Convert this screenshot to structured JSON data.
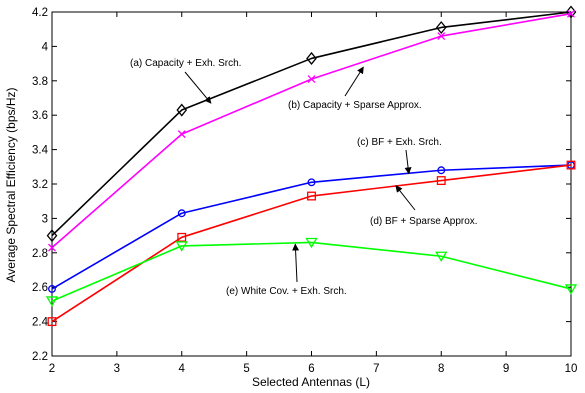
{
  "chart_data": {
    "type": "line",
    "xlabel": "Selected Antennas (L)",
    "ylabel": "Average Spectral Efficiency (bps/Hz)",
    "xlim": [
      2,
      10
    ],
    "ylim": [
      2.2,
      4.2
    ],
    "xticks": [
      2,
      3,
      4,
      5,
      6,
      7,
      8,
      9,
      10
    ],
    "yticks": [
      2.2,
      2.4,
      2.6,
      2.8,
      3.0,
      3.2,
      3.4,
      3.6,
      3.8,
      4.0,
      4.2
    ],
    "ytick_labels": [
      "2.2",
      "2.4",
      "2.6",
      "2.8",
      "3",
      "3.2",
      "3.4",
      "3.6",
      "3.8",
      "4",
      "4.2"
    ],
    "grid": false,
    "legend": "none",
    "x": [
      2,
      4,
      6,
      8,
      10
    ],
    "series": [
      {
        "name": "(a) Capacity + Exh. Srch.",
        "color": "#000000",
        "marker": "diamond",
        "values": [
          2.9,
          3.63,
          3.93,
          4.11,
          4.2
        ]
      },
      {
        "name": "(b) Capacity + Sparse Approx.",
        "color": "#ff00ff",
        "marker": "x",
        "values": [
          2.83,
          3.49,
          3.81,
          4.06,
          4.19
        ]
      },
      {
        "name": "(c) BF + Exh. Srch.",
        "color": "#0000ff",
        "marker": "circle",
        "values": [
          2.59,
          3.03,
          3.21,
          3.28,
          3.31
        ]
      },
      {
        "name": "(d) BF +  Sparse Approx.",
        "color": "#ff0000",
        "marker": "square",
        "values": [
          2.4,
          2.89,
          3.13,
          3.22,
          3.31
        ]
      },
      {
        "name": "(e) White Cov. + Exh. Srch.",
        "color": "#00ff00",
        "marker": "triangle-down",
        "values": [
          2.52,
          2.84,
          2.86,
          2.78,
          2.59
        ]
      }
    ],
    "annotations": [
      {
        "text": "(a) Capacity + Exh. Srch.",
        "series": 0,
        "arrow_to": [
          4.45,
          3.67
        ]
      },
      {
        "text": "(b) Capacity + Sparse Approx.",
        "series": 1,
        "arrow_to": [
          6.8,
          3.88
        ]
      },
      {
        "text": "(c) BF + Exh. Srch.",
        "series": 2,
        "arrow_to": [
          7.5,
          3.26
        ]
      },
      {
        "text": "(d) BF +  Sparse Approx.",
        "series": 3,
        "arrow_to": [
          7.3,
          3.19
        ]
      },
      {
        "text": "(e) White Cov. + Exh. Srch.",
        "series": 4,
        "arrow_to": [
          5.75,
          2.85
        ]
      }
    ]
  }
}
